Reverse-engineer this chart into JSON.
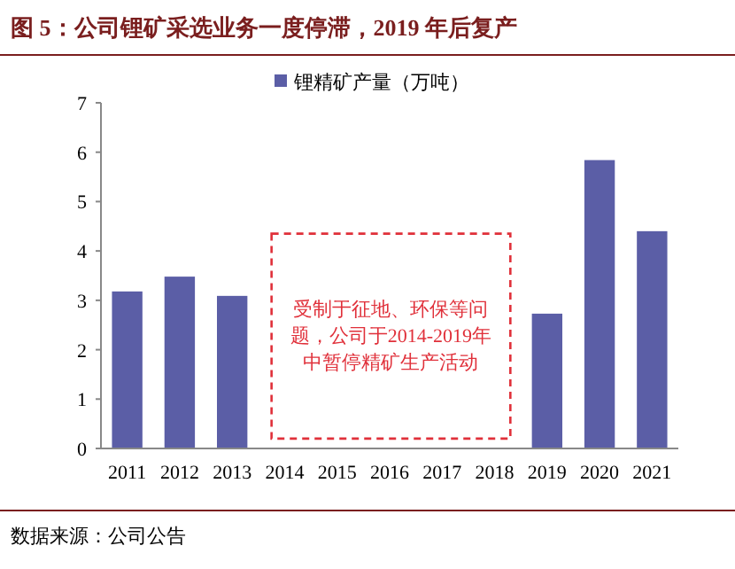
{
  "chart_data": {
    "type": "bar",
    "title": "图 5：公司锂矿采选业务一度停滞，2019 年后复产",
    "categories": [
      "2011",
      "2012",
      "2013",
      "2014",
      "2015",
      "2016",
      "2017",
      "2018",
      "2019",
      "2020",
      "2021"
    ],
    "series": [
      {
        "name": "锂精矿产量（万吨）",
        "color": "#5b5ea6",
        "values": [
          3.18,
          3.48,
          3.09,
          null,
          null,
          null,
          null,
          null,
          2.73,
          5.84,
          4.4
        ]
      }
    ],
    "ylim": [
      0,
      7
    ],
    "yticks": [
      0,
      1,
      2,
      3,
      4,
      5,
      6,
      7
    ],
    "legend": "top",
    "grid": false,
    "annotations": [
      "受制于征地、环保等问题，公司于2014-2019年中暂停精矿生产活动",
      "数据来源：公司公告"
    ]
  }
}
